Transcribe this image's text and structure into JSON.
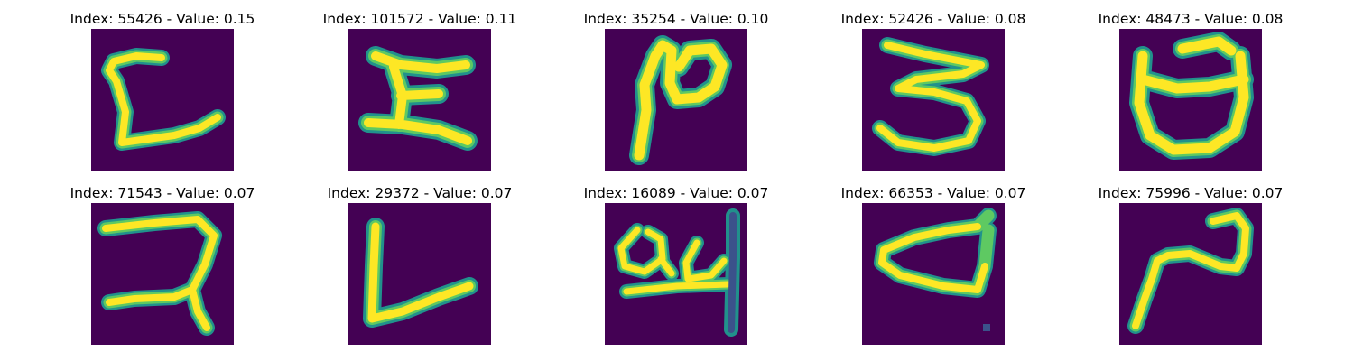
{
  "figure": {
    "background": "#ffffff",
    "colormap": "viridis",
    "image_background": "#440154",
    "stroke_colors": {
      "core": "#fde725",
      "mid": "#5ec962",
      "edge": "#21918c"
    },
    "panels": [
      {
        "title": "Index: 55426 - Value: 0.15",
        "glyph": "handwritten-c-with-tail"
      },
      {
        "title": "Index: 101572 - Value: 0.11",
        "glyph": "handwritten-h-shape"
      },
      {
        "title": "Index: 35254 - Value: 0.10",
        "glyph": "handwritten-n-loop"
      },
      {
        "title": "Index: 52426 - Value: 0.08",
        "glyph": "handwritten-three"
      },
      {
        "title": "Index: 48473 - Value: 0.08",
        "glyph": "handwritten-cup-shape"
      },
      {
        "title": "Index: 71543 - Value: 0.07",
        "glyph": "handwritten-backwards-r"
      },
      {
        "title": "Index: 29372 - Value: 0.07",
        "glyph": "handwritten-l-shape"
      },
      {
        "title": "Index: 16089 - Value: 0.07",
        "glyph": "handwritten-loop-with-bar"
      },
      {
        "title": "Index: 66353 - Value: 0.07",
        "glyph": "handwritten-d-shape"
      },
      {
        "title": "Index: 75996 - Value: 0.07",
        "glyph": "handwritten-n-stroke"
      }
    ]
  }
}
